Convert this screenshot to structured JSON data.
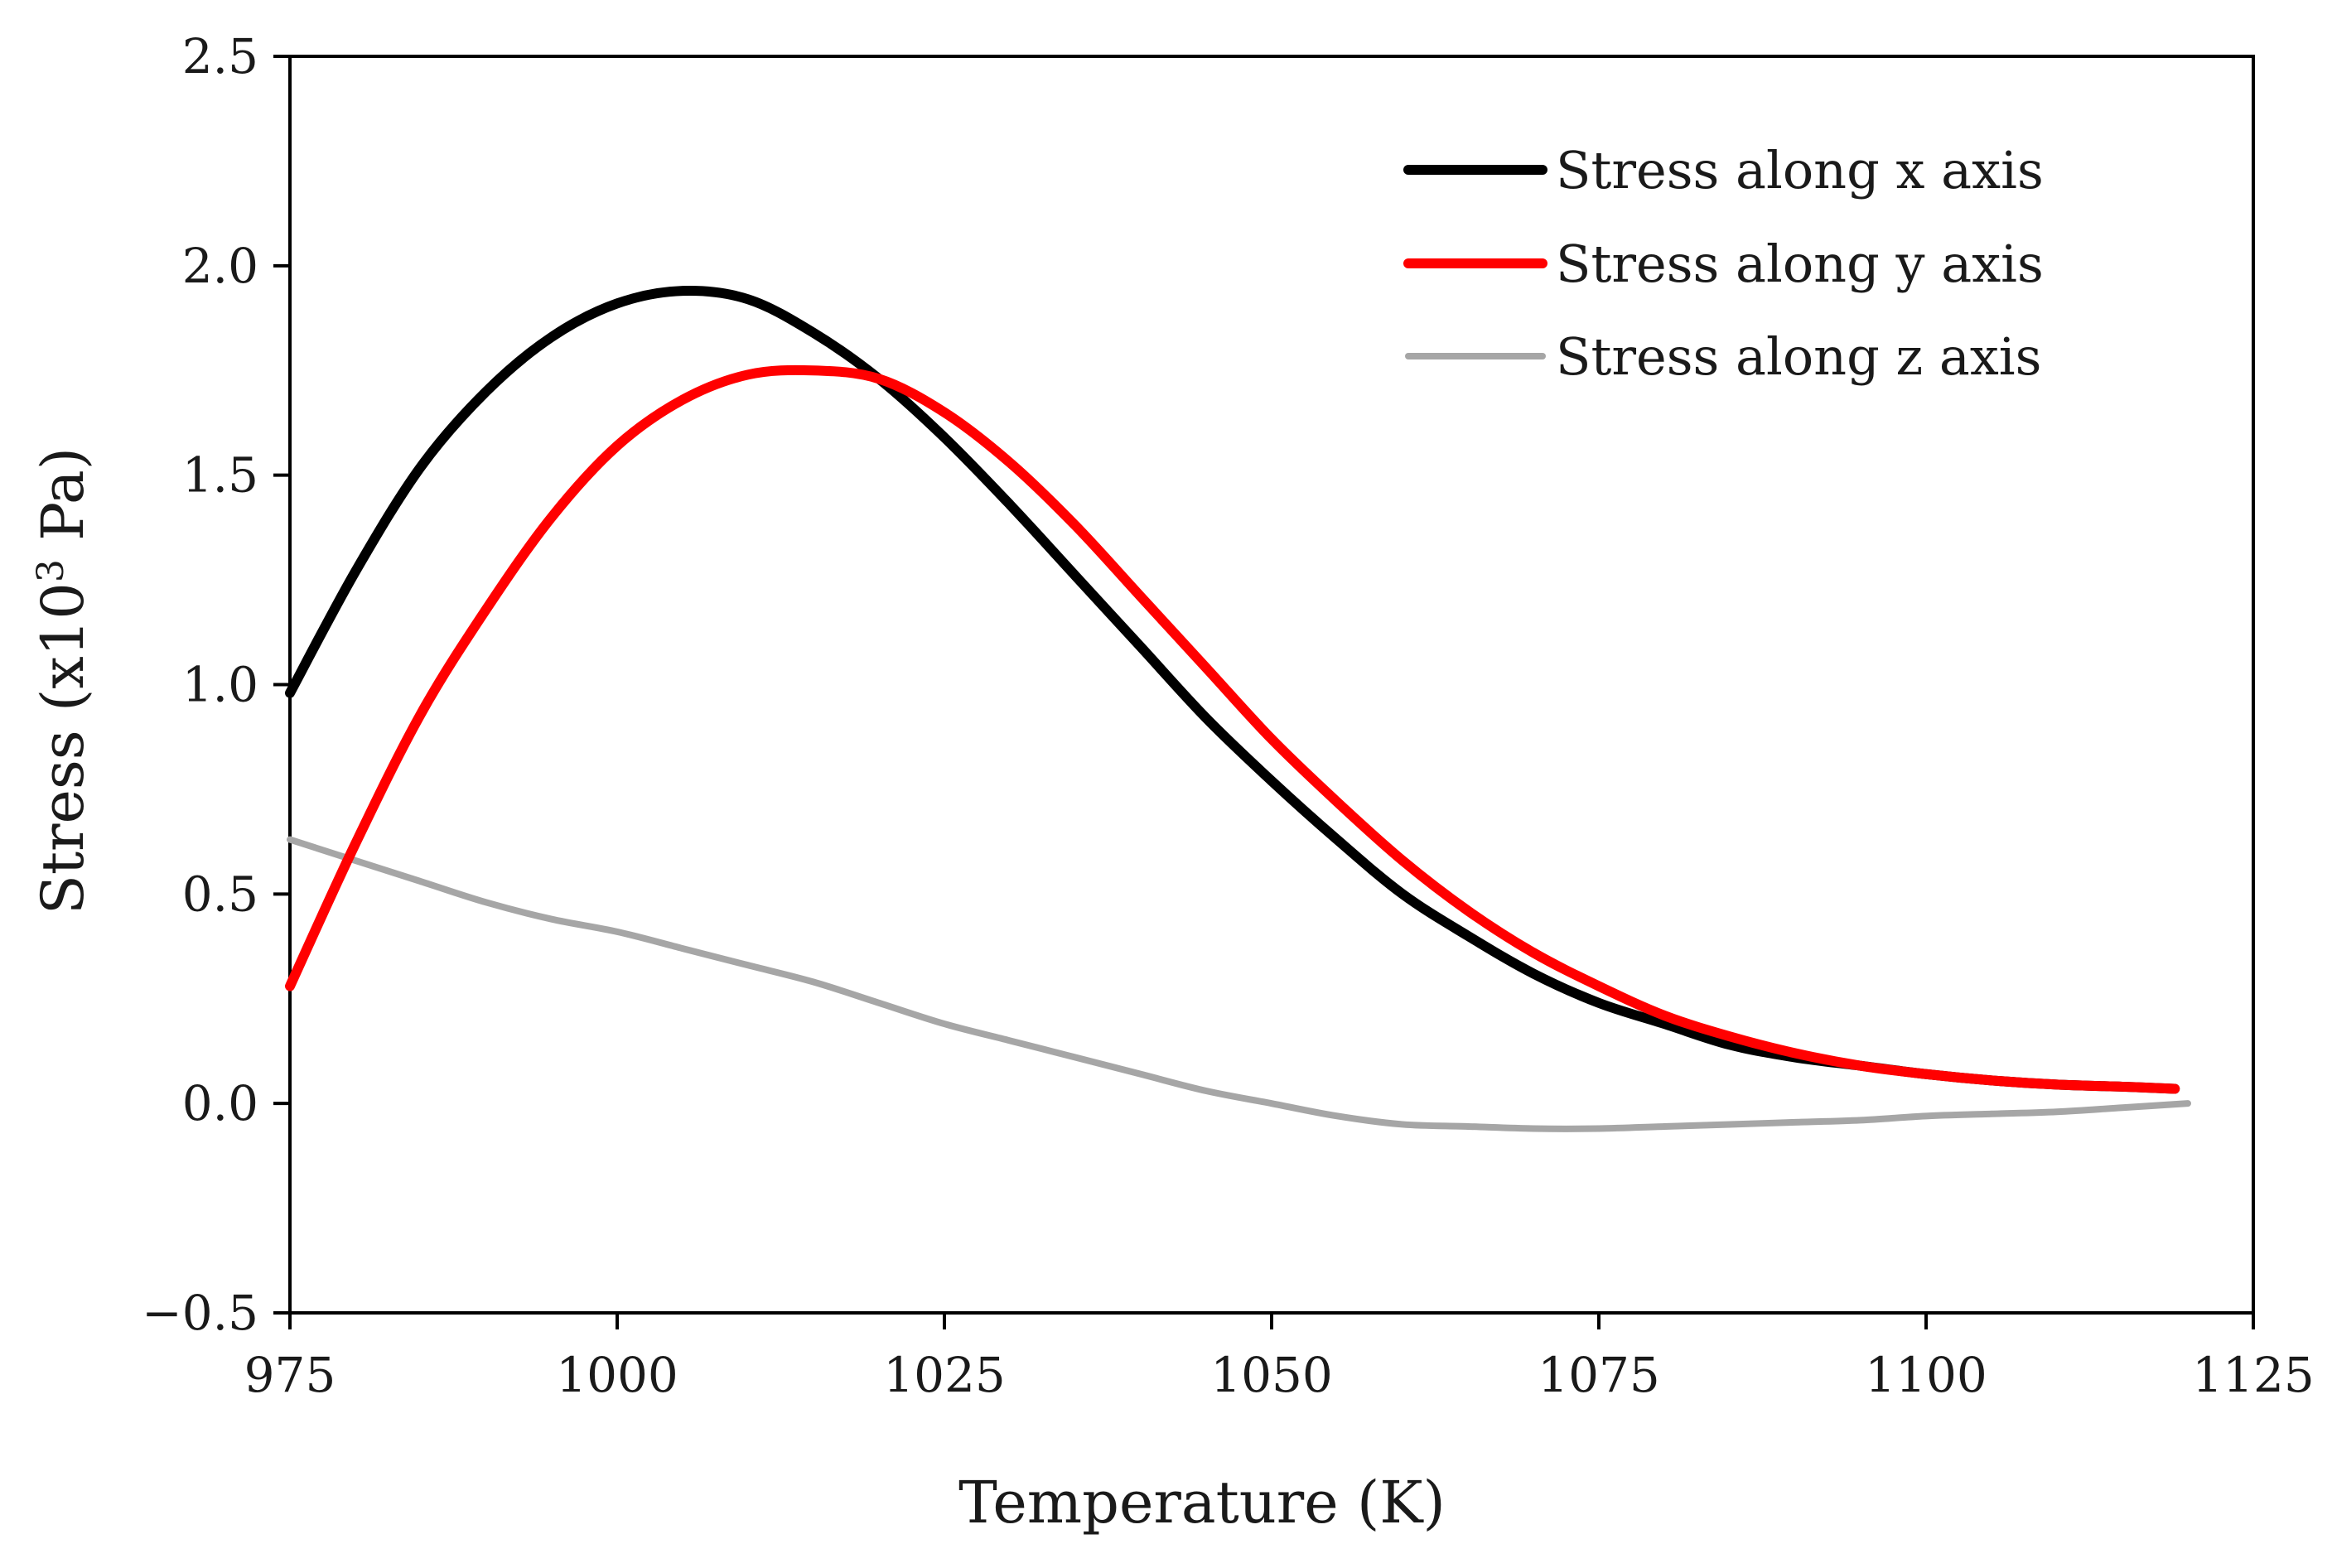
{
  "chart_data": {
    "type": "line",
    "title": "",
    "xlabel": "Temperature (K)",
    "ylabel_main": "Stress (x10",
    "ylabel_sup": "3",
    "ylabel_tail": " Pa)",
    "xlim": [
      975,
      1125
    ],
    "ylim": [
      -0.5,
      2.5
    ],
    "xticks": [
      975,
      1000,
      1025,
      1050,
      1075,
      1100,
      1125
    ],
    "xtick_labels": [
      "975",
      "1000",
      "1025",
      "1050",
      "1075",
      "1100",
      "1125"
    ],
    "yticks": [
      -0.5,
      0.0,
      0.5,
      1.0,
      1.5,
      2.0,
      2.5
    ],
    "ytick_labels": [
      "−0.5",
      "0.0",
      "0.5",
      "1.0",
      "1.5",
      "2.0",
      "2.5"
    ],
    "grid": false,
    "legend_position": "top-right",
    "series": [
      {
        "name": "Stress along x axis",
        "color": "#000000",
        "x": [
          975,
          980,
          985,
          990,
          995,
          1000,
          1005,
          1010,
          1015,
          1020,
          1025,
          1030,
          1035,
          1040,
          1045,
          1050,
          1055,
          1060,
          1065,
          1070,
          1075,
          1080,
          1085,
          1090,
          1095,
          1100,
          1105,
          1110,
          1115,
          1119
        ],
        "y": [
          0.98,
          1.27,
          1.52,
          1.7,
          1.83,
          1.91,
          1.94,
          1.92,
          1.84,
          1.73,
          1.59,
          1.43,
          1.26,
          1.09,
          0.92,
          0.77,
          0.63,
          0.5,
          0.4,
          0.31,
          0.24,
          0.19,
          0.14,
          0.11,
          0.09,
          0.07,
          0.055,
          0.045,
          0.04,
          0.035
        ]
      },
      {
        "name": "Stress along y axis",
        "color": "#ff0000",
        "x": [
          975,
          980,
          985,
          990,
          995,
          1000,
          1005,
          1010,
          1015,
          1020,
          1025,
          1030,
          1035,
          1040,
          1045,
          1050,
          1055,
          1060,
          1065,
          1070,
          1075,
          1080,
          1085,
          1090,
          1095,
          1100,
          1105,
          1110,
          1115,
          1119
        ],
        "y": [
          0.28,
          0.62,
          0.93,
          1.18,
          1.4,
          1.57,
          1.68,
          1.74,
          1.75,
          1.73,
          1.65,
          1.53,
          1.38,
          1.21,
          1.04,
          0.87,
          0.72,
          0.58,
          0.46,
          0.36,
          0.28,
          0.21,
          0.16,
          0.12,
          0.09,
          0.07,
          0.055,
          0.045,
          0.04,
          0.035
        ]
      },
      {
        "name": "Stress along z axis",
        "color": "#a6a6a6",
        "x": [
          975,
          980,
          985,
          990,
          995,
          1000,
          1005,
          1010,
          1015,
          1020,
          1025,
          1030,
          1035,
          1040,
          1045,
          1050,
          1055,
          1060,
          1065,
          1070,
          1075,
          1080,
          1085,
          1090,
          1095,
          1100,
          1105,
          1110,
          1115,
          1120
        ],
        "y": [
          0.63,
          0.58,
          0.53,
          0.48,
          0.44,
          0.41,
          0.37,
          0.33,
          0.29,
          0.24,
          0.19,
          0.15,
          0.11,
          0.07,
          0.03,
          0.0,
          -0.03,
          -0.05,
          -0.055,
          -0.06,
          -0.06,
          -0.055,
          -0.05,
          -0.045,
          -0.04,
          -0.03,
          -0.025,
          -0.02,
          -0.01,
          0.0
        ]
      }
    ]
  }
}
